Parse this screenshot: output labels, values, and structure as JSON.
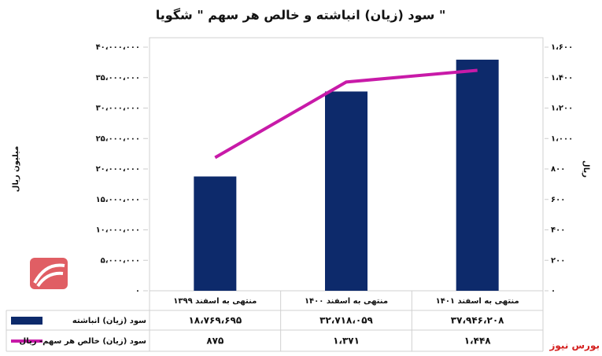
{
  "chart_data": {
    "type": "bar",
    "title": "سود (زیان) انباشته و خالص هر سهم \" شگویا \"",
    "ylabel": "میلیون ریال",
    "y2label": "ریال",
    "source": "بورس نیوز",
    "categories": [
      "منتهی به اسفند ۱۳۹۹",
      "منتهی به اسفند ۱۴۰۰",
      "منتهی به اسفند ۱۴۰۱"
    ],
    "series": [
      {
        "name": "سود (زیان) انباشته",
        "color": "#0d2a6b",
        "type": "bar",
        "values": [
          18769695,
          32718059,
          37946208
        ],
        "value_labels": [
          "۱۸،۷۶۹،۶۹۵",
          "۳۲،۷۱۸،۰۵۹",
          "۳۷،۹۴۶،۲۰۸"
        ]
      },
      {
        "name": "سود (زیان) خالص هر سهم- ریال",
        "color": "#c81aa8",
        "type": "line",
        "axis": "y2",
        "values": [
          875,
          1371,
          1448
        ],
        "value_labels": [
          "۸۷۵",
          "۱،۳۷۱",
          "۱،۴۴۸"
        ]
      }
    ],
    "ylim": [
      0,
      40000000
    ],
    "yticks": [
      {
        "value": 0,
        "label": "۰"
      },
      {
        "value": 5000000,
        "label": "۵،۰۰۰،۰۰۰"
      },
      {
        "value": 10000000,
        "label": "۱۰،۰۰۰،۰۰۰"
      },
      {
        "value": 15000000,
        "label": "۱۵،۰۰۰،۰۰۰"
      },
      {
        "value": 20000000,
        "label": "۲۰،۰۰۰،۰۰۰"
      },
      {
        "value": 25000000,
        "label": "۲۵،۰۰۰،۰۰۰"
      },
      {
        "value": 30000000,
        "label": "۳۰،۰۰۰،۰۰۰"
      },
      {
        "value": 35000000,
        "label": "۳۵،۰۰۰،۰۰۰"
      },
      {
        "value": 40000000,
        "label": "۴۰،۰۰۰،۰۰۰"
      }
    ],
    "y2lim": [
      0,
      1600
    ],
    "y2ticks": [
      {
        "value": 0,
        "label": "۰"
      },
      {
        "value": 200,
        "label": "۲۰۰"
      },
      {
        "value": 400,
        "label": "۴۰۰"
      },
      {
        "value": 600,
        "label": "۶۰۰"
      },
      {
        "value": 800,
        "label": "۸۰۰"
      },
      {
        "value": 1000,
        "label": "۱،۰۰۰"
      },
      {
        "value": 1200,
        "label": "۱،۲۰۰"
      },
      {
        "value": 1400,
        "label": "۱،۴۰۰"
      },
      {
        "value": 1600,
        "label": "۱،۶۰۰"
      }
    ]
  }
}
